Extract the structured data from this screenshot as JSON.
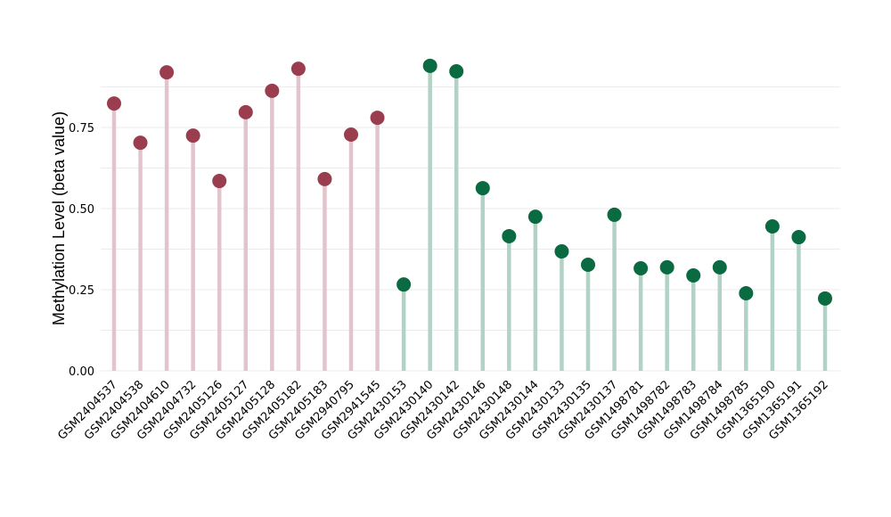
{
  "chart_data": {
    "type": "lollipop",
    "title": "",
    "xlabel": "",
    "ylabel": "Methylation Level (beta value)",
    "ylim": [
      0,
      1.0
    ],
    "yticks": [
      0.0,
      0.25,
      0.5,
      0.75
    ],
    "ytick_labels": [
      "0.00",
      "0.25",
      "0.50",
      "0.75"
    ],
    "grid": true,
    "categories": [
      "GSM2404537",
      "GSM2404538",
      "GSM2404610",
      "GSM2404732",
      "GSM2405126",
      "GSM2405127",
      "GSM2405128",
      "GSM2405182",
      "GSM2405183",
      "GSM2940795",
      "GSM2941545",
      "GSM2430153",
      "GSM2430140",
      "GSM2430142",
      "GSM2430146",
      "GSM2430148",
      "GSM2430144",
      "GSM2430133",
      "GSM2430135",
      "GSM2430137",
      "GSM1498781",
      "GSM1498782",
      "GSM1498783",
      "GSM1498784",
      "GSM1498785",
      "GSM1365190",
      "GSM1365191",
      "GSM1365192"
    ],
    "values": [
      0.824,
      0.703,
      0.92,
      0.725,
      0.585,
      0.797,
      0.863,
      0.931,
      0.591,
      0.728,
      0.78,
      0.266,
      0.94,
      0.923,
      0.563,
      0.415,
      0.475,
      0.368,
      0.327,
      0.481,
      0.316,
      0.319,
      0.294,
      0.319,
      0.239,
      0.445,
      0.412,
      0.223
    ],
    "groups": [
      "a",
      "a",
      "a",
      "a",
      "a",
      "a",
      "a",
      "a",
      "a",
      "a",
      "a",
      "b",
      "b",
      "b",
      "b",
      "b",
      "b",
      "b",
      "b",
      "b",
      "b",
      "b",
      "b",
      "b",
      "b",
      "b",
      "b",
      "b"
    ],
    "colors": {
      "a": {
        "dot": "#9a3e4f",
        "stem": "#e2c4cc"
      },
      "b": {
        "dot": "#0a6a41",
        "stem": "#b2d2c5"
      }
    }
  }
}
